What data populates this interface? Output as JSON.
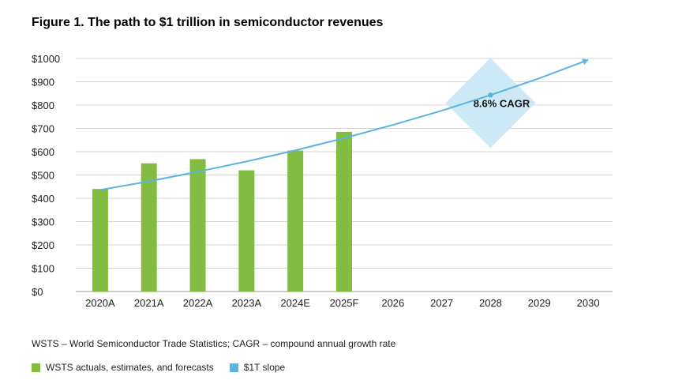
{
  "chart_data": {
    "type": "bar",
    "title": "Figure 1. The path to $1 trillion in semiconductor revenues",
    "categories": [
      "2020A",
      "2021A",
      "2022A",
      "2023A",
      "2024E",
      "2025F",
      "2026",
      "2027",
      "2028",
      "2029",
      "2030"
    ],
    "ylim": [
      0,
      1000
    ],
    "y_ticks": [
      "$0",
      "$100",
      "$200",
      "$300",
      "$400",
      "$500",
      "$600",
      "$700",
      "$800",
      "$900",
      "$1000"
    ],
    "grid": true,
    "series": [
      {
        "name": "WSTS actuals, estimates, and forecasts",
        "type": "bar",
        "color": "#82bc41",
        "values": [
          440,
          550,
          568,
          520,
          605,
          685,
          null,
          null,
          null,
          null,
          null
        ]
      },
      {
        "name": "$1T slope",
        "type": "line",
        "color": "#5bb4df",
        "values": [
          436,
          473,
          514,
          558,
          606,
          658,
          715,
          776,
          843,
          915,
          994
        ]
      }
    ],
    "annotation": {
      "text": "8.6% CAGR",
      "at_category": "2028",
      "color": "#cde9f6"
    },
    "legend_position": "bottom-left"
  },
  "footnote": "WSTS – World Semiconductor Trade Statistics; CAGR – compound annual growth rate"
}
